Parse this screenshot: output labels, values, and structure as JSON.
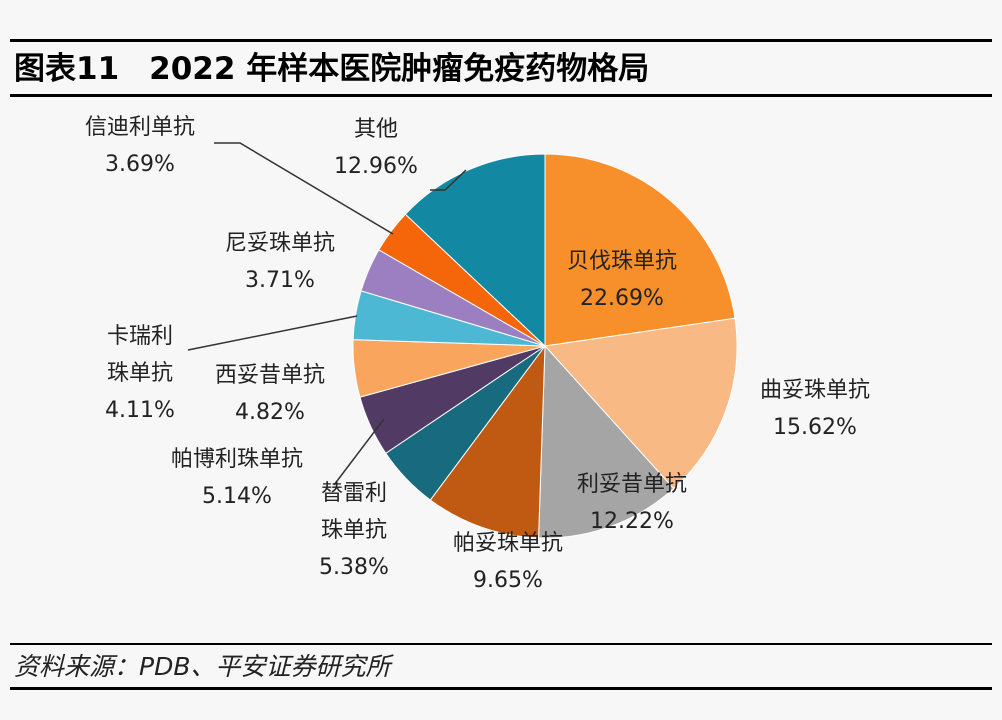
{
  "figure": {
    "number": "图表11",
    "title": "2022 年样本医院肿瘤免疫药物格局"
  },
  "source": "资料来源：PDB、平安证券研究所",
  "chart_data": {
    "type": "pie",
    "unit": "%",
    "slices": [
      {
        "name": "贝伐珠单抗",
        "name_lines": [
          "贝伐珠单抗"
        ],
        "value": 22.69,
        "label": "22.69%",
        "color": "#F7902A"
      },
      {
        "name": "曲妥珠单抗",
        "name_lines": [
          "曲妥珠单抗"
        ],
        "value": 15.62,
        "label": "15.62%",
        "color": "#F9B985"
      },
      {
        "name": "利妥昔单抗",
        "name_lines": [
          "利妥昔单抗"
        ],
        "value": 12.22,
        "label": "12.22%",
        "color": "#A5A5A5"
      },
      {
        "name": "帕妥珠单抗",
        "name_lines": [
          "帕妥珠单抗"
        ],
        "value": 9.65,
        "label": "9.65%",
        "color": "#C05A12"
      },
      {
        "name": "替雷利珠单抗",
        "name_lines": [
          "替雷利",
          "珠单抗"
        ],
        "value": 5.38,
        "label": "5.38%",
        "color": "#186A7E"
      },
      {
        "name": "帕博利珠单抗",
        "name_lines": [
          "帕博利珠单抗"
        ],
        "value": 5.14,
        "label": "5.14%",
        "color": "#513B64"
      },
      {
        "name": "西妥昔单抗",
        "name_lines": [
          "西妥昔单抗"
        ],
        "value": 4.82,
        "label": "4.82%",
        "color": "#F9A55E"
      },
      {
        "name": "卡瑞利珠单抗",
        "name_lines": [
          "卡瑞利",
          "珠单抗"
        ],
        "value": 4.11,
        "label": "4.11%",
        "color": "#4CB8D4"
      },
      {
        "name": "尼妥珠单抗",
        "name_lines": [
          "尼妥珠单抗"
        ],
        "value": 3.71,
        "label": "3.71%",
        "color": "#9C7FC0"
      },
      {
        "name": "信迪利单抗",
        "name_lines": [
          "信迪利单抗"
        ],
        "value": 3.69,
        "label": "3.69%",
        "color": "#F5650A"
      },
      {
        "name": "其他",
        "name_lines": [
          "其他"
        ],
        "value": 12.96,
        "label": "12.96%",
        "color": "#1388A3"
      }
    ],
    "start_angle": "12 o'clock",
    "direction": "clockwise",
    "legend": "none",
    "data_labels": "name and percentage"
  }
}
